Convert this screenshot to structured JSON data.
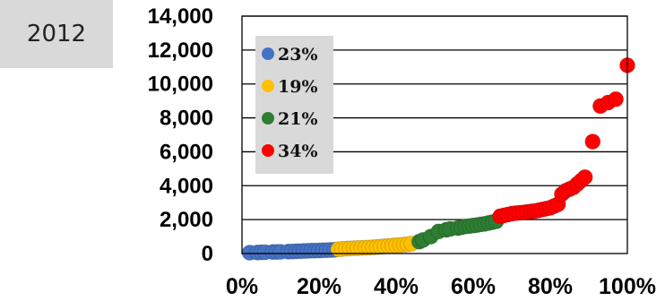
{
  "year_label": "2012",
  "chart_data": {
    "type": "scatter",
    "title": "",
    "xlabel": "",
    "ylabel": "",
    "xlim": [
      0,
      100
    ],
    "ylim": [
      0,
      14000
    ],
    "grid": "horizontal",
    "legend_placement": "top-left",
    "x_ticks": [
      "0%",
      "20%",
      "40%",
      "60%",
      "80%",
      "100%"
    ],
    "y_ticks": [
      "0",
      "2,000",
      "4,000",
      "6,000",
      "8,000",
      "10,000",
      "12,000",
      "14,000"
    ],
    "series": [
      {
        "name": "23%",
        "color": "#4472c4",
        "points": [
          [
            2,
            50
          ],
          [
            4,
            60
          ],
          [
            5,
            70
          ],
          [
            6,
            75
          ],
          [
            8,
            90
          ],
          [
            9,
            95
          ],
          [
            10,
            100
          ],
          [
            12,
            110
          ],
          [
            13,
            120
          ],
          [
            14,
            130
          ],
          [
            15,
            140
          ],
          [
            16,
            150
          ],
          [
            17,
            160
          ],
          [
            18,
            170
          ],
          [
            19,
            175
          ],
          [
            20,
            180
          ],
          [
            21,
            190
          ],
          [
            22,
            200
          ],
          [
            23,
            210
          ],
          [
            24,
            220
          ]
        ]
      },
      {
        "name": "19%",
        "color": "#ffc000",
        "points": [
          [
            25,
            250
          ],
          [
            26,
            270
          ],
          [
            27,
            290
          ],
          [
            28,
            300
          ],
          [
            29,
            310
          ],
          [
            30,
            320
          ],
          [
            31,
            330
          ],
          [
            32,
            340
          ],
          [
            33,
            350
          ],
          [
            34,
            360
          ],
          [
            35,
            380
          ],
          [
            36,
            400
          ],
          [
            37,
            420
          ],
          [
            38,
            440
          ],
          [
            39,
            460
          ],
          [
            40,
            480
          ],
          [
            41,
            500
          ],
          [
            42,
            520
          ],
          [
            43,
            540
          ],
          [
            44,
            580
          ]
        ]
      },
      {
        "name": "21%",
        "color": "#2e7d32",
        "points": [
          [
            46,
            700
          ],
          [
            47,
            800
          ],
          [
            49,
            1000
          ],
          [
            51,
            1300
          ],
          [
            53,
            1400
          ],
          [
            54,
            1450
          ],
          [
            56,
            1500
          ],
          [
            57,
            1550
          ],
          [
            58,
            1600
          ],
          [
            59,
            1620
          ],
          [
            60,
            1650
          ],
          [
            61,
            1680
          ],
          [
            62,
            1720
          ],
          [
            63,
            1750
          ],
          [
            64,
            1800
          ],
          [
            65,
            1850
          ],
          [
            66,
            1900
          ]
        ]
      },
      {
        "name": "34%",
        "color": "#ff0000",
        "points": [
          [
            67,
            2200
          ],
          [
            68,
            2250
          ],
          [
            69,
            2300
          ],
          [
            70,
            2350
          ],
          [
            71,
            2380
          ],
          [
            72,
            2400
          ],
          [
            73,
            2420
          ],
          [
            74,
            2450
          ],
          [
            75,
            2480
          ],
          [
            76,
            2500
          ],
          [
            77,
            2550
          ],
          [
            78,
            2600
          ],
          [
            79,
            2650
          ],
          [
            80,
            2700
          ],
          [
            81,
            2800
          ],
          [
            82,
            2900
          ],
          [
            83,
            3500
          ],
          [
            84,
            3700
          ],
          [
            85,
            3800
          ],
          [
            86,
            3900
          ],
          [
            87,
            4100
          ],
          [
            88,
            4300
          ],
          [
            89,
            4500
          ],
          [
            91,
            6600
          ],
          [
            93,
            8700
          ],
          [
            95,
            8900
          ],
          [
            97,
            9100
          ],
          [
            100,
            11100
          ]
        ]
      }
    ]
  }
}
